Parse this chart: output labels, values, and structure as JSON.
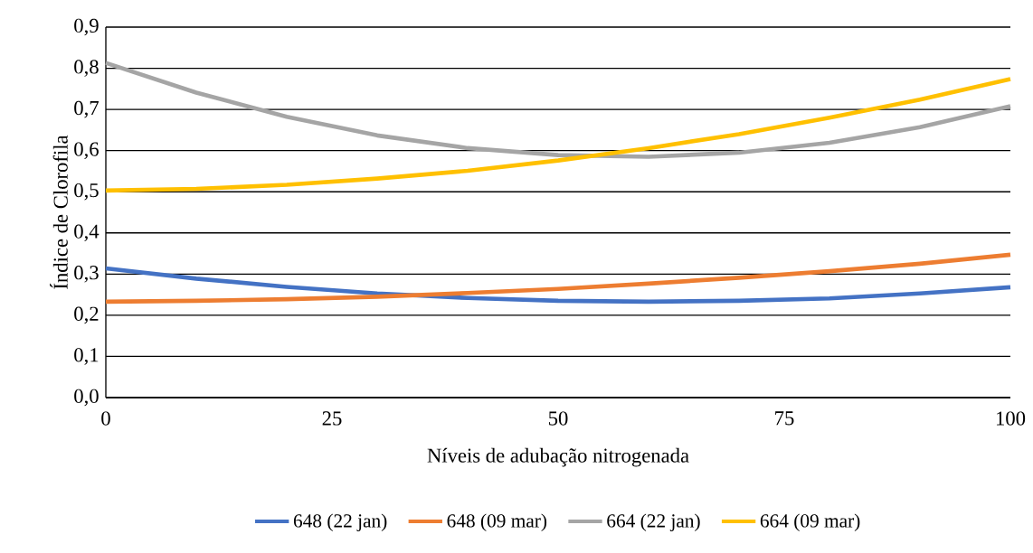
{
  "chart_data": {
    "type": "line",
    "xlabel": "Níveis de adubação nitrogenada",
    "ylabel": "Índice de Clorofila",
    "x": [
      0,
      10,
      20,
      30,
      40,
      50,
      60,
      70,
      80,
      90,
      100
    ],
    "series": [
      {
        "name": "648 (22 jan)",
        "color": "#4472c4",
        "values": [
          0.314,
          0.289,
          0.269,
          0.253,
          0.242,
          0.235,
          0.233,
          0.235,
          0.241,
          0.253,
          0.268
        ]
      },
      {
        "name": "648 (09 mar)",
        "color": "#ed7d31",
        "values": [
          0.233,
          0.235,
          0.239,
          0.245,
          0.254,
          0.264,
          0.277,
          0.291,
          0.307,
          0.325,
          0.347
        ]
      },
      {
        "name": "664 (22 jan)",
        "color": "#a5a5a5",
        "values": [
          0.813,
          0.741,
          0.682,
          0.637,
          0.606,
          0.589,
          0.585,
          0.595,
          0.619,
          0.657,
          0.708
        ]
      },
      {
        "name": "664 (09 mar)",
        "color": "#ffc000",
        "values": [
          0.503,
          0.507,
          0.517,
          0.532,
          0.551,
          0.576,
          0.606,
          0.64,
          0.68,
          0.724,
          0.774
        ]
      }
    ],
    "xlim": [
      0,
      100
    ],
    "xticks": [
      0,
      25,
      50,
      75,
      100
    ],
    "ylim": [
      0,
      0.9
    ],
    "yticks": [
      {
        "value": 0,
        "label": "0,0"
      },
      {
        "value": 0.1,
        "label": "0,1"
      },
      {
        "value": 0.2,
        "label": "0,2"
      },
      {
        "value": 0.3,
        "label": "0,3"
      },
      {
        "value": 0.4,
        "label": "0,4"
      },
      {
        "value": 0.5,
        "label": "0,5"
      },
      {
        "value": 0.6,
        "label": "0,6"
      },
      {
        "value": 0.7,
        "label": "0,7"
      },
      {
        "value": 0.8,
        "label": "0,8"
      },
      {
        "value": 0.9,
        "label": "0,9"
      }
    ],
    "grid": "y",
    "legend": "bottom",
    "marker": "none",
    "line_style": "solid"
  }
}
